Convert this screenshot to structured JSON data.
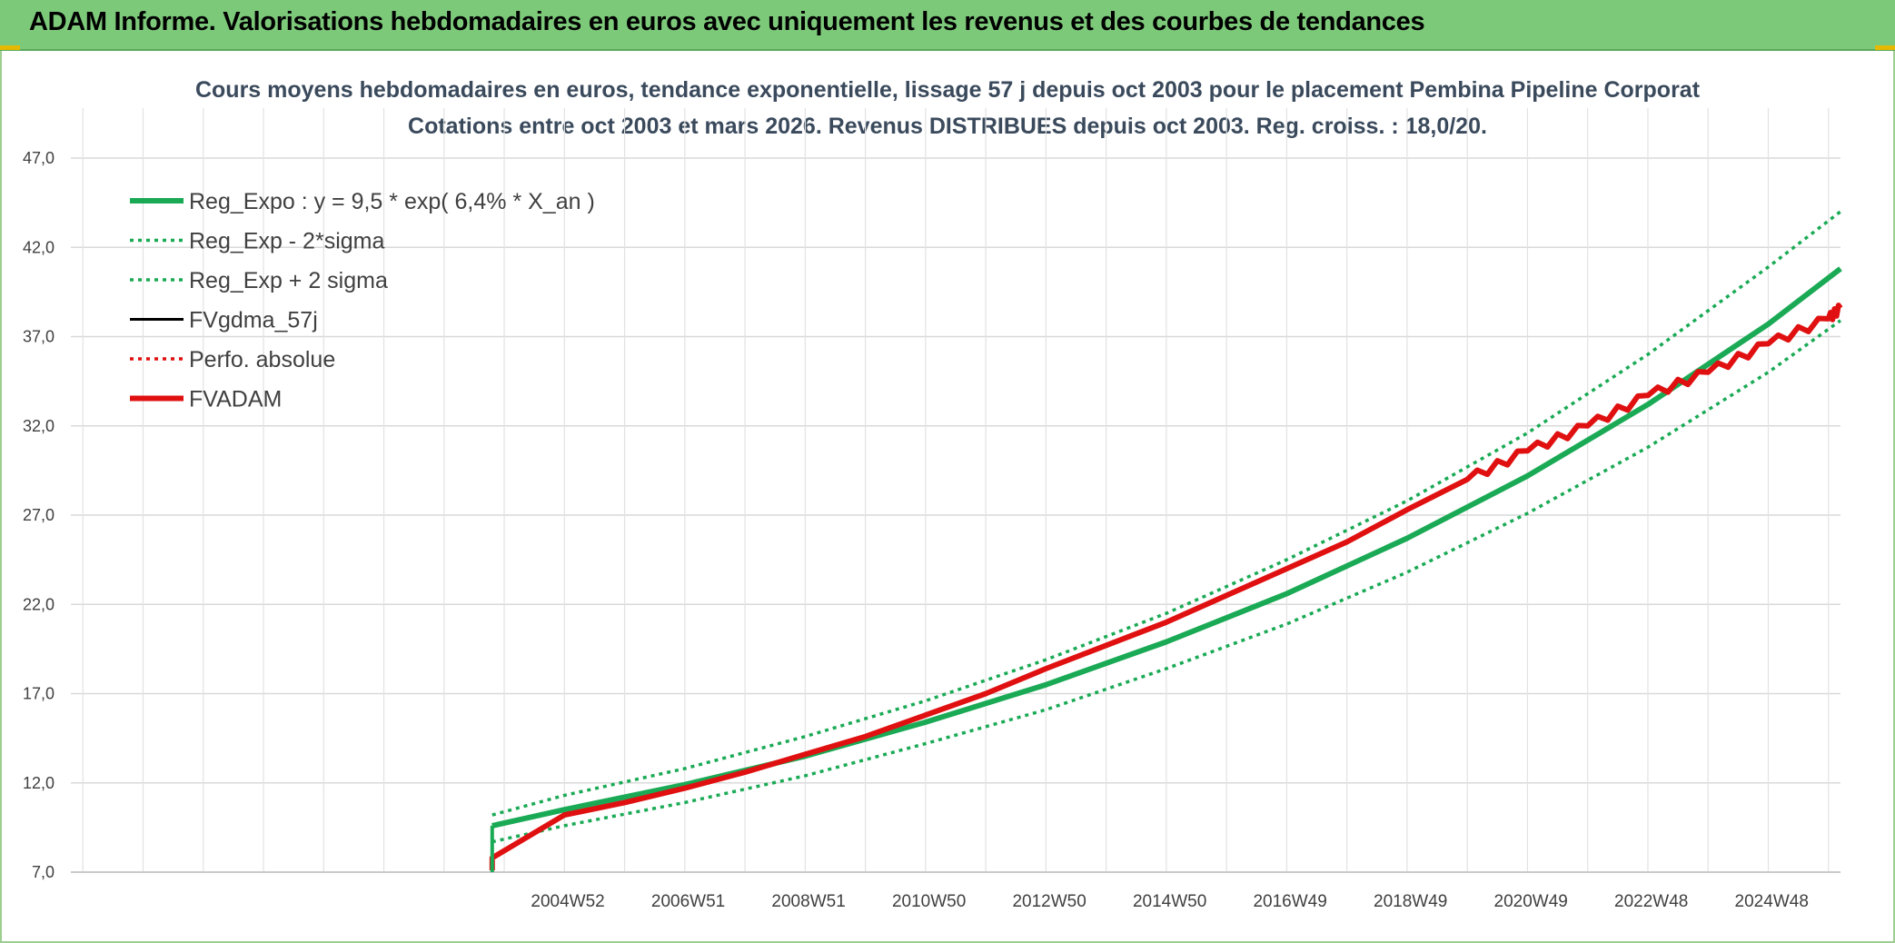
{
  "header": {
    "title": "ADAM Informe. Valorisations hebdomadaires en euros avec uniquement les revenus et des courbes de tendances"
  },
  "chart_data": {
    "type": "line",
    "title": "Cours moyens hebdomadaires en euros, tendance exponentielle, lissage 57 j depuis oct 2003 pour le placement Pembina Pipeline Corporat",
    "subtitle": "Cotations entre oct 2003 et mars 2026. Revenus DISTRIBUES depuis oct 2003. Reg. croiss. : 18,0/20.",
    "xlabel": "",
    "ylabel": "",
    "ylim": [
      7.0,
      47.0
    ],
    "yticks": [
      "7,0",
      "12,0",
      "17,0",
      "22,0",
      "27,0",
      "32,0",
      "37,0",
      "42,0",
      "47,0"
    ],
    "x_range_years": [
      1996.8,
      2026.2
    ],
    "xtick_labels": [
      "2004W52",
      "2006W51",
      "2008W51",
      "2010W50",
      "2012W50",
      "2014W50",
      "2016W49",
      "2018W49",
      "2020W49",
      "2022W48",
      "2024W48"
    ],
    "xtick_years": [
      2004.0,
      2006.0,
      2008.0,
      2010.0,
      2012.0,
      2014.0,
      2016.0,
      2018.0,
      2020.0,
      2022.0,
      2024.0
    ],
    "grid": true,
    "legend_position": "top-left",
    "series": [
      {
        "name": "Reg_Expo : y = 9,5 * exp( 6,4% *  X_an )",
        "color": "#1aaa55",
        "style": "solid-thick",
        "x": [
          2003.8,
          2005,
          2007,
          2009,
          2011,
          2013,
          2015,
          2017,
          2019,
          2021,
          2023,
          2025,
          2026.2
        ],
        "y": [
          9.6,
          10.5,
          11.9,
          13.5,
          15.4,
          17.5,
          19.9,
          22.6,
          25.7,
          29.2,
          33.2,
          37.7,
          40.8
        ]
      },
      {
        "name": "Reg_Exp - 2*sigma",
        "color": "#1aaa55",
        "style": "dotted",
        "x": [
          2003.8,
          2005,
          2007,
          2009,
          2011,
          2013,
          2015,
          2017,
          2019,
          2021,
          2023,
          2025,
          2026.2
        ],
        "y": [
          8.7,
          9.6,
          10.9,
          12.4,
          14.2,
          16.1,
          18.4,
          20.9,
          23.8,
          27.1,
          30.8,
          35.0,
          37.9
        ]
      },
      {
        "name": "Reg_Exp + 2 sigma",
        "color": "#1aaa55",
        "style": "dotted",
        "x": [
          2003.8,
          2005,
          2007,
          2009,
          2011,
          2013,
          2015,
          2017,
          2019,
          2021,
          2023,
          2025,
          2026.2
        ],
        "y": [
          10.2,
          11.3,
          12.8,
          14.6,
          16.6,
          18.9,
          21.5,
          24.5,
          27.8,
          31.6,
          36.0,
          40.9,
          44.0
        ]
      },
      {
        "name": "FVgdma_57j",
        "color": "#000000",
        "style": "solid",
        "x": [],
        "y": []
      },
      {
        "name": "Perfo. absolue",
        "color": "#e01010",
        "style": "dotted",
        "x": [],
        "y": []
      },
      {
        "name": "FVADAM",
        "color": "#e01010",
        "style": "solid-thick",
        "x": [
          2003.8,
          2003.8,
          2004.2,
          2004.6,
          2005.0,
          2006.0,
          2007.0,
          2008.0,
          2009.0,
          2010.0,
          2011.0,
          2012.0,
          2013.0,
          2014.0,
          2015.0,
          2016.0,
          2017.0,
          2018.0,
          2019.0,
          2020.0,
          2021.0,
          2022.0,
          2023.0,
          2024.0,
          2025.0,
          2026.0,
          2026.2
        ],
        "y": [
          7.1,
          7.8,
          8.6,
          9.4,
          10.2,
          10.9,
          11.7,
          12.6,
          13.6,
          14.6,
          15.8,
          17.0,
          18.4,
          19.7,
          21.0,
          22.5,
          24.0,
          25.5,
          27.3,
          29.0,
          30.6,
          32.0,
          33.7,
          35.0,
          36.6,
          38.0,
          38.6
        ]
      }
    ]
  }
}
